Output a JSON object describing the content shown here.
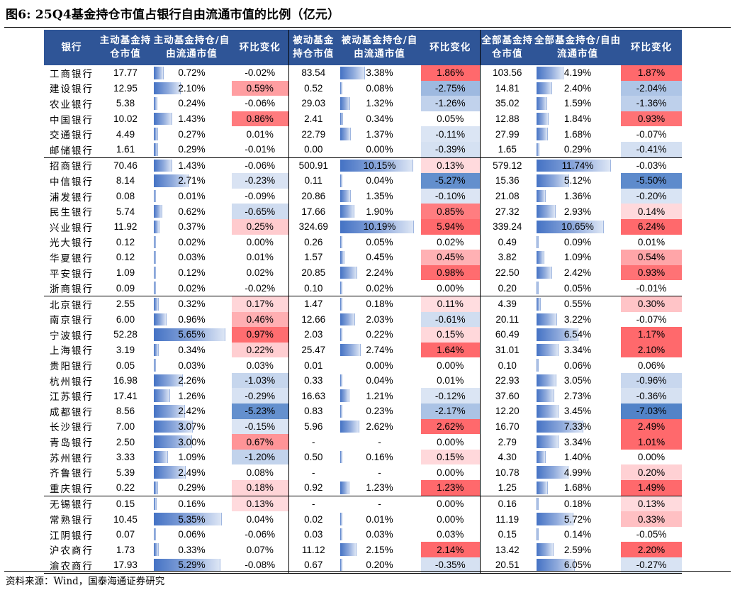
{
  "title": "图6:  25Q4基金持仓市值占银行自由流通市值的比例（亿元）",
  "source": "资料来源：Wind，国泰海通证券研究",
  "headers": {
    "bank": "银行",
    "active_value": "主动基金持仓市值",
    "active_ratio": "主动基金持仓/自由流通市值",
    "active_chg": "环比变化",
    "passive_value": "被动基金持仓市值",
    "passive_ratio": "被动基金持仓/自由流通市值",
    "passive_chg": "环比变化",
    "all_value": "全部基金持仓市值",
    "all_ratio": "全部基金持仓/自由流通市值",
    "all_chg": "环比变化"
  },
  "colors": {
    "header_bg": "#2f5597",
    "bar_dark": "#4472c4",
    "positive": "#f8696b",
    "negative": "#5a8ac6"
  },
  "rows": [
    {
      "bank": "工商银行",
      "av": "17.77",
      "ar": "0.72%",
      "ac": "-0.02%",
      "pv": "83.54",
      "pr": "3.38%",
      "pc": "1.86%",
      "tv": "103.56",
      "tr": "4.19%",
      "tc": "1.87%"
    },
    {
      "bank": "建设银行",
      "av": "12.95",
      "ar": "2.10%",
      "ac": "0.59%",
      "pv": "0.52",
      "pr": "0.08%",
      "pc": "-2.75%",
      "tv": "14.81",
      "tr": "2.40%",
      "tc": "-2.04%"
    },
    {
      "bank": "农业银行",
      "av": "5.38",
      "ar": "0.24%",
      "ac": "-0.06%",
      "pv": "29.03",
      "pr": "1.32%",
      "pc": "-1.26%",
      "tv": "35.02",
      "tr": "1.59%",
      "tc": "-1.36%"
    },
    {
      "bank": "中国银行",
      "av": "10.02",
      "ar": "1.43%",
      "ac": "0.86%",
      "pv": "2.41",
      "pr": "0.34%",
      "pc": "0.05%",
      "tv": "12.88",
      "tr": "1.84%",
      "tc": "0.93%"
    },
    {
      "bank": "交通银行",
      "av": "4.49",
      "ar": "0.27%",
      "ac": "0.01%",
      "pv": "22.79",
      "pr": "1.37%",
      "pc": "-0.11%",
      "tv": "27.99",
      "tr": "1.68%",
      "tc": "-0.07%"
    },
    {
      "bank": "邮储银行",
      "av": "1.61",
      "ar": "0.29%",
      "ac": "-0.01%",
      "pv": "0.00",
      "pr": "0.00%",
      "pc": "-0.39%",
      "tv": "1.65",
      "tr": "0.29%",
      "tc": "-0.41%"
    },
    {
      "bank": "招商银行",
      "av": "70.46",
      "ar": "1.43%",
      "ac": "-0.06%",
      "pv": "500.91",
      "pr": "10.15%",
      "pc": "0.13%",
      "tv": "579.12",
      "tr": "11.74%",
      "tc": "-0.03%"
    },
    {
      "bank": "中信银行",
      "av": "8.14",
      "ar": "2.71%",
      "ac": "-0.23%",
      "pv": "0.11",
      "pr": "0.04%",
      "pc": "-5.27%",
      "tv": "15.36",
      "tr": "5.12%",
      "tc": "-5.50%"
    },
    {
      "bank": "浦发银行",
      "av": "0.08",
      "ar": "0.01%",
      "ac": "-0.09%",
      "pv": "20.86",
      "pr": "1.35%",
      "pc": "-0.10%",
      "tv": "21.08",
      "tr": "1.36%",
      "tc": "-0.20%"
    },
    {
      "bank": "民生银行",
      "av": "5.74",
      "ar": "0.62%",
      "ac": "-0.65%",
      "pv": "17.66",
      "pr": "1.90%",
      "pc": "0.85%",
      "tv": "27.32",
      "tr": "2.93%",
      "tc": "0.14%"
    },
    {
      "bank": "兴业银行",
      "av": "11.92",
      "ar": "0.37%",
      "ac": "0.25%",
      "pv": "324.69",
      "pr": "10.19%",
      "pc": "5.94%",
      "tv": "339.24",
      "tr": "10.65%",
      "tc": "6.24%"
    },
    {
      "bank": "光大银行",
      "av": "0.12",
      "ar": "0.02%",
      "ac": "0.00%",
      "pv": "0.26",
      "pr": "0.05%",
      "pc": "0.02%",
      "tv": "0.49",
      "tr": "0.09%",
      "tc": "0.01%"
    },
    {
      "bank": "华夏银行",
      "av": "0.12",
      "ar": "0.03%",
      "ac": "0.01%",
      "pv": "1.57",
      "pr": "0.45%",
      "pc": "0.45%",
      "tv": "3.82",
      "tr": "1.09%",
      "tc": "0.54%"
    },
    {
      "bank": "平安银行",
      "av": "1.09",
      "ar": "0.12%",
      "ac": "0.02%",
      "pv": "20.85",
      "pr": "2.24%",
      "pc": "0.98%",
      "tv": "22.50",
      "tr": "2.42%",
      "tc": "0.93%"
    },
    {
      "bank": "浙商银行",
      "av": "0.09",
      "ar": "0.02%",
      "ac": "-0.02%",
      "pv": "0.10",
      "pr": "0.02%",
      "pc": "0.00%",
      "tv": "0.20",
      "tr": "0.05%",
      "tc": "-0.01%"
    },
    {
      "bank": "北京银行",
      "av": "2.55",
      "ar": "0.32%",
      "ac": "0.17%",
      "pv": "1.47",
      "pr": "0.18%",
      "pc": "0.11%",
      "tv": "4.39",
      "tr": "0.55%",
      "tc": "0.30%"
    },
    {
      "bank": "南京银行",
      "av": "6.00",
      "ar": "0.96%",
      "ac": "0.46%",
      "pv": "12.66",
      "pr": "2.03%",
      "pc": "-0.61%",
      "tv": "20.11",
      "tr": "3.22%",
      "tc": "-0.07%"
    },
    {
      "bank": "宁波银行",
      "av": "52.28",
      "ar": "5.65%",
      "ac": "0.97%",
      "pv": "2.03",
      "pr": "0.22%",
      "pc": "0.15%",
      "tv": "60.49",
      "tr": "6.54%",
      "tc": "1.17%"
    },
    {
      "bank": "上海银行",
      "av": "3.19",
      "ar": "0.34%",
      "ac": "0.22%",
      "pv": "25.47",
      "pr": "2.74%",
      "pc": "1.64%",
      "tv": "31.01",
      "tr": "3.34%",
      "tc": "2.10%"
    },
    {
      "bank": "贵阳银行",
      "av": "0.05",
      "ar": "0.03%",
      "ac": "0.03%",
      "pv": "0.01",
      "pr": "0.00%",
      "pc": "0.00%",
      "tv": "0.10",
      "tr": "0.06%",
      "tc": "0.06%"
    },
    {
      "bank": "杭州银行",
      "av": "16.98",
      "ar": "2.26%",
      "ac": "-1.03%",
      "pv": "0.33",
      "pr": "0.04%",
      "pc": "0.01%",
      "tv": "22.93",
      "tr": "3.05%",
      "tc": "-0.96%"
    },
    {
      "bank": "江苏银行",
      "av": "17.41",
      "ar": "1.26%",
      "ac": "-0.29%",
      "pv": "16.63",
      "pr": "1.21%",
      "pc": "-0.12%",
      "tv": "37.60",
      "tr": "2.73%",
      "tc": "-0.36%"
    },
    {
      "bank": "成都银行",
      "av": "8.56",
      "ar": "2.42%",
      "ac": "-5.23%",
      "pv": "0.83",
      "pr": "0.23%",
      "pc": "-2.17%",
      "tv": "12.20",
      "tr": "3.45%",
      "tc": "-7.03%"
    },
    {
      "bank": "长沙银行",
      "av": "7.00",
      "ar": "3.07%",
      "ac": "-0.15%",
      "pv": "5.96",
      "pr": "2.62%",
      "pc": "2.62%",
      "tv": "16.70",
      "tr": "7.33%",
      "tc": "2.49%"
    },
    {
      "bank": "青岛银行",
      "av": "2.50",
      "ar": "3.00%",
      "ac": "0.67%",
      "pv": "-",
      "pr": "-",
      "pc": "0.00%",
      "tv": "2.79",
      "tr": "3.34%",
      "tc": "1.01%"
    },
    {
      "bank": "苏州银行",
      "av": "3.33",
      "ar": "1.09%",
      "ac": "-1.20%",
      "pv": "0.50",
      "pr": "0.16%",
      "pc": "0.15%",
      "tv": "4.30",
      "tr": "1.40%",
      "tc": "0.00%"
    },
    {
      "bank": "齐鲁银行",
      "av": "5.39",
      "ar": "2.49%",
      "ac": "0.08%",
      "pv": "-",
      "pr": "-",
      "pc": "0.00%",
      "tv": "10.78",
      "tr": "4.99%",
      "tc": "0.20%"
    },
    {
      "bank": "重庆银行",
      "av": "0.22",
      "ar": "0.29%",
      "ac": "0.18%",
      "pv": "0.92",
      "pr": "1.23%",
      "pc": "1.23%",
      "tv": "1.25",
      "tr": "1.68%",
      "tc": "1.49%"
    },
    {
      "bank": "无锡银行",
      "av": "0.15",
      "ar": "0.16%",
      "ac": "0.13%",
      "pv": "-",
      "pr": "-",
      "pc": "0.00%",
      "tv": "0.16",
      "tr": "0.18%",
      "tc": "0.13%"
    },
    {
      "bank": "常熟银行",
      "av": "10.45",
      "ar": "5.35%",
      "ac": "0.04%",
      "pv": "0.02",
      "pr": "0.01%",
      "pc": "0.00%",
      "tv": "11.19",
      "tr": "5.72%",
      "tc": "0.33%"
    },
    {
      "bank": "江阴银行",
      "av": "0.07",
      "ar": "0.06%",
      "ac": "-0.06%",
      "pv": "0.03",
      "pr": "0.03%",
      "pc": "0.03%",
      "tv": "0.15",
      "tr": "0.14%",
      "tc": "-0.05%"
    },
    {
      "bank": "沪农商行",
      "av": "1.73",
      "ar": "0.33%",
      "ac": "0.07%",
      "pv": "11.12",
      "pr": "2.15%",
      "pc": "2.14%",
      "tv": "13.42",
      "tr": "2.59%",
      "tc": "2.20%"
    },
    {
      "bank": "渝农商行",
      "av": "17.93",
      "ar": "5.29%",
      "ac": "-0.08%",
      "pv": "0.67",
      "pr": "0.20%",
      "pc": "-0.35%",
      "tv": "20.51",
      "tr": "6.05%",
      "tc": "-0.27%"
    }
  ]
}
